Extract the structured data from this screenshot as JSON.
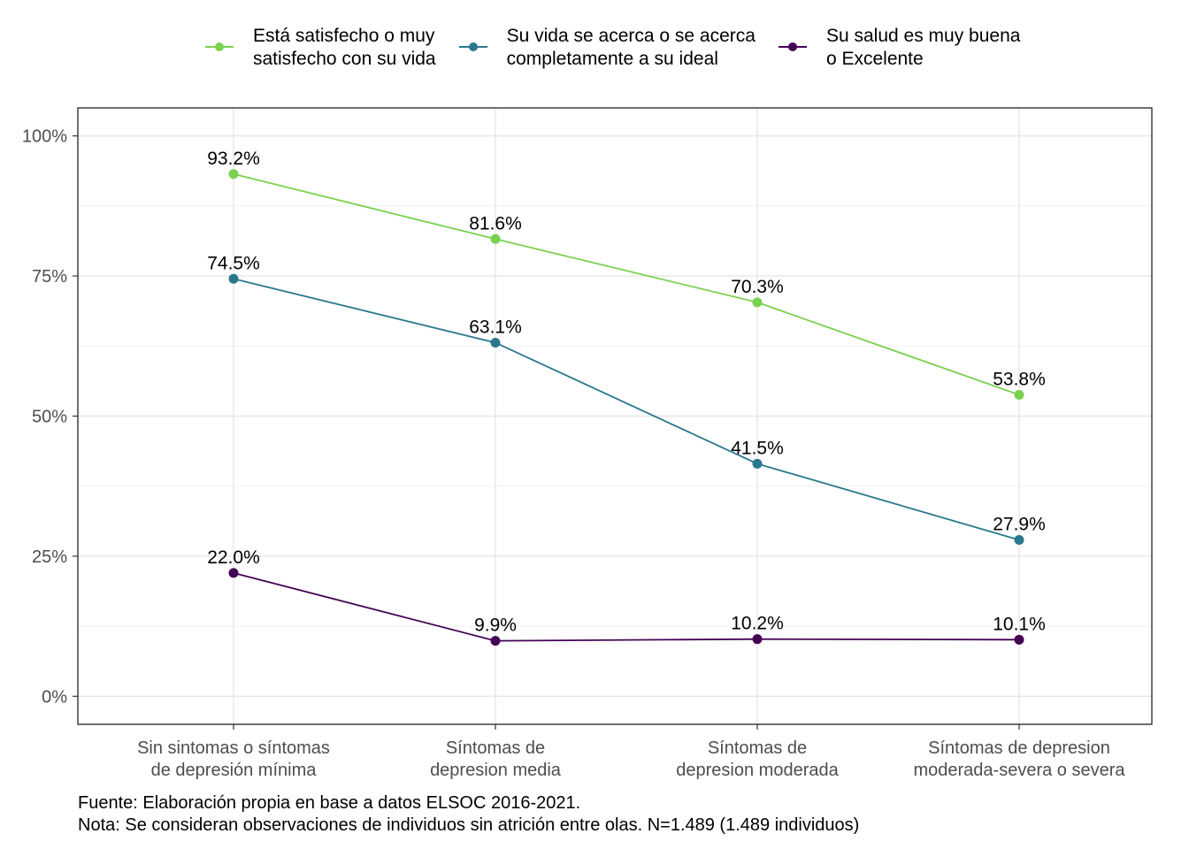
{
  "chart_data": {
    "type": "line",
    "categories": [
      [
        "Sin sintomas o síntomas",
        "de depresión mínima"
      ],
      [
        "Síntomas de",
        "depresion media"
      ],
      [
        "Síntomas de",
        "depresion moderada"
      ],
      [
        "Síntomas de depresion",
        "moderada-severa o severa"
      ]
    ],
    "series": [
      {
        "name": [
          "Está satisfecho o muy",
          "satisfecho con su vida"
        ],
        "color": "#7AD151",
        "values": [
          93.2,
          81.6,
          70.3,
          53.8
        ],
        "labels": [
          "93.2%",
          "81.6%",
          "70.3%",
          "53.8%"
        ]
      },
      {
        "name": [
          "Su vida se acerca o se acerca",
          "completamente a su ideal"
        ],
        "color": "#2A788E",
        "values": [
          74.5,
          63.1,
          41.5,
          27.9
        ],
        "labels": [
          "74.5%",
          "63.1%",
          "41.5%",
          "27.9%"
        ]
      },
      {
        "name": [
          "Su salud es muy buena",
          "o Excelente"
        ],
        "color": "#440154",
        "values": [
          22.0,
          9.9,
          10.2,
          10.1
        ],
        "labels": [
          "22.0%",
          "9.9%",
          "10.2%",
          "10.1%"
        ]
      }
    ],
    "ylim": [
      -5,
      105
    ],
    "yticks": [
      0,
      25,
      50,
      75,
      100
    ],
    "ytick_labels": [
      "0%",
      "25%",
      "50%",
      "75%",
      "100%"
    ],
    "grid": true,
    "legend_position": "top"
  },
  "caption": {
    "source": "Fuente: Elaboración propia en base a datos ELSOC 2016-2021.",
    "note": "Nota: Se consideran observaciones de individuos sin atrición entre olas. N=1.489 (1.489 individuos)"
  }
}
